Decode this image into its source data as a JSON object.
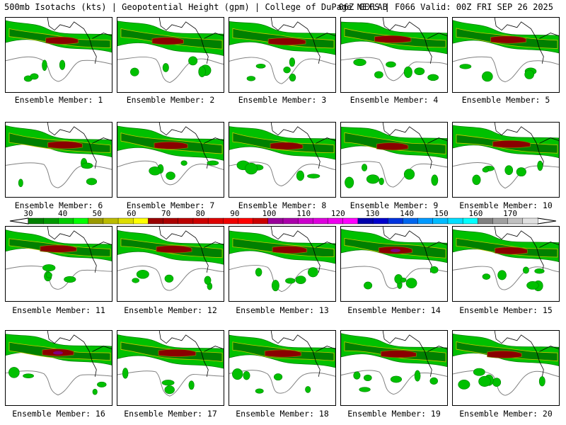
{
  "header": {
    "left": "500mb Isotachs (kts) | Geopotential Height (gpm) | College of DuPage NEXLAB",
    "right": "06Z GEFS | F066 Valid: 00Z FRI SEP 26 2025"
  },
  "members": [
    "Ensemble Member: 1",
    "Ensemble Member: 2",
    "Ensemble Member: 3",
    "Ensemble Member: 4",
    "Ensemble Member: 5",
    "Ensemble Member: 6",
    "Ensemble Member: 7",
    "Ensemble Member: 8",
    "Ensemble Member: 9",
    "Ensemble Member: 10",
    "Ensemble Member: 11",
    "Ensemble Member: 12",
    "Ensemble Member: 13",
    "Ensemble Member: 14",
    "Ensemble Member: 15",
    "Ensemble Member: 16",
    "Ensemble Member: 17",
    "Ensemble Member: 18",
    "Ensemble Member: 19",
    "Ensemble Member: 20"
  ],
  "colorbar": {
    "unit": "kts",
    "ticks": [
      "30",
      "40",
      "50",
      "60",
      "70",
      "80",
      "90",
      "100",
      "110",
      "120",
      "130",
      "140",
      "150",
      "160",
      "170"
    ],
    "colors": [
      "#008000",
      "#009900",
      "#00cc00",
      "#00ff00",
      "#999900",
      "#bbbb00",
      "#dddd00",
      "#ffff00",
      "#990000",
      "#aa0000",
      "#bb0000",
      "#cc0000",
      "#dd0000",
      "#ee0000",
      "#ff0000",
      "#cc0000",
      "#990099",
      "#aa00aa",
      "#cc00cc",
      "#dd00dd",
      "#ee00ee",
      "#ff00ff",
      "#0000aa",
      "#0000cc",
      "#0033dd",
      "#0066ee",
      "#0099ff",
      "#00bbff",
      "#00ddff",
      "#00ffff",
      "#808080",
      "#a0a0a0",
      "#c0c0c0",
      "#e0e0e0"
    ]
  },
  "map_colors": {
    "light_green": "#00c000",
    "green": "#008000",
    "yellow": "#c8c800",
    "olive": "#808000",
    "dark_red": "#8b0000",
    "purple": "#800080",
    "contour_gray": "#808080",
    "coast_black": "#000000"
  },
  "map_icons": "ensemble-map-panel"
}
